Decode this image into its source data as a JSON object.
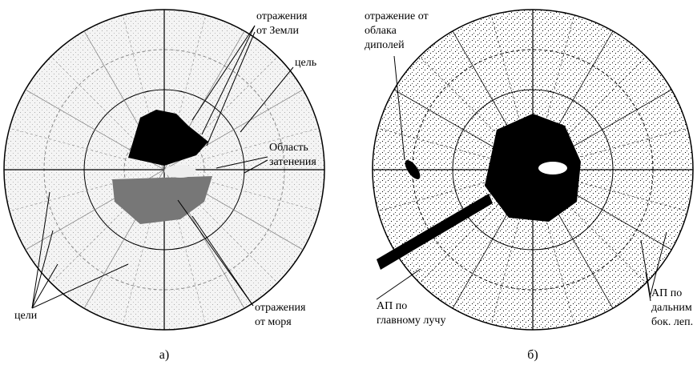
{
  "panels": [
    {
      "caption": "а)",
      "labels": [
        {
          "lines": [
            "отражения",
            "от Земли"
          ]
        },
        {
          "lines": [
            "цель"
          ]
        },
        {
          "lines": [
            "Область",
            "затенения"
          ]
        },
        {
          "lines": [
            "цели"
          ]
        },
        {
          "lines": [
            "отражения",
            "от моря"
          ]
        }
      ]
    },
    {
      "caption": "б)",
      "labels": [
        {
          "lines": [
            "отражение от",
            "облака",
            "диполей"
          ]
        },
        {
          "lines": [
            "АП по",
            "главному лучу"
          ]
        },
        {
          "lines": [
            "АП по",
            "дальним",
            "бок. леп."
          ]
        }
      ]
    }
  ]
}
